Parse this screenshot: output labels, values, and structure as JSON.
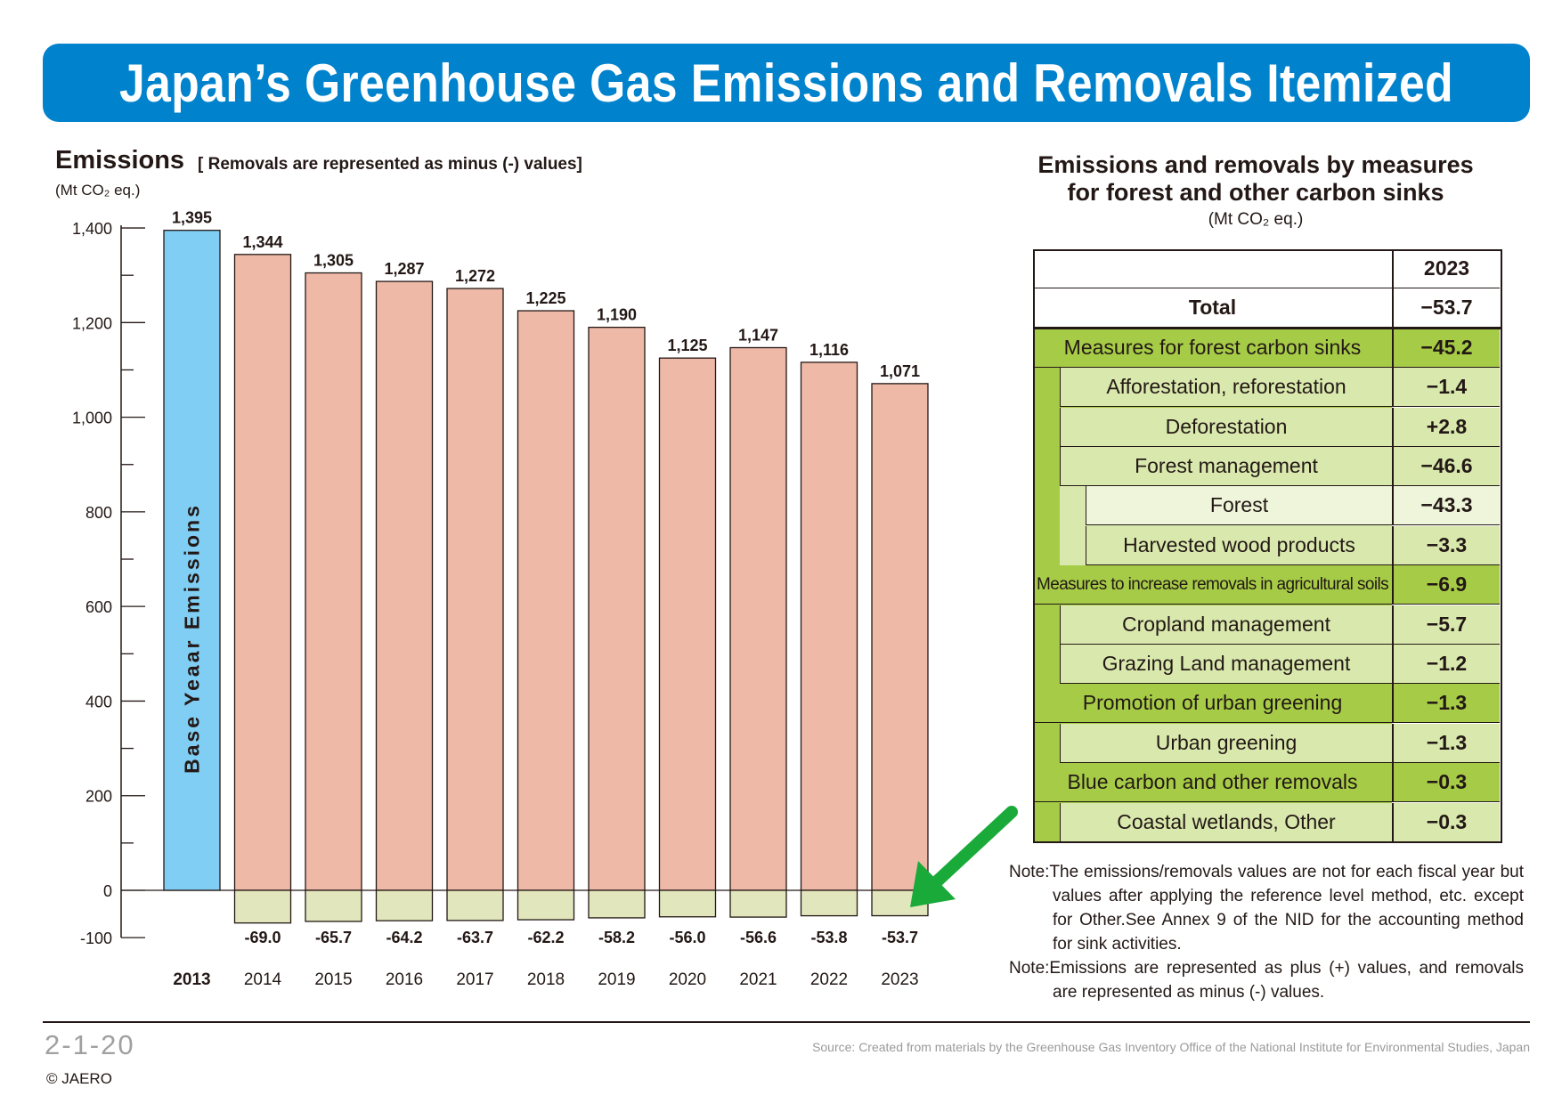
{
  "title": "Japan’s Greenhouse Gas Emissions and Removals Itemized",
  "emissions_label": "Emissions",
  "emissions_note": "[ Removals are represented as minus (-) values]",
  "emissions_unit": "(Mt CO₂ eq.)",
  "chart_data": {
    "type": "bar",
    "title": "Emissions",
    "subtitle": "[ Removals are represented as minus (-) values]",
    "ylabel": "(Mt CO₂ eq.)",
    "xlabel": "",
    "ylim": [
      -100,
      1400
    ],
    "yticks": [
      1400,
      1200,
      1000,
      800,
      600,
      400,
      200,
      0,
      -100
    ],
    "ytick_labels": [
      "1,400",
      "1,200",
      "1,000",
      "800",
      "600",
      "400",
      "200",
      "0",
      "-100"
    ],
    "categories": [
      "2013",
      "2014",
      "2015",
      "2016",
      "2017",
      "2018",
      "2019",
      "2020",
      "2021",
      "2022",
      "2023"
    ],
    "base_year_label": "Base Yeaar Emissions",
    "series": [
      {
        "name": "Emissions",
        "values": [
          1395,
          1344,
          1305,
          1287,
          1272,
          1225,
          1190,
          1125,
          1147,
          1116,
          1071
        ],
        "labels": [
          "1,395",
          "1,344",
          "1,305",
          "1,287",
          "1,272",
          "1,225",
          "1,190",
          "1,125",
          "1,147",
          "1,116",
          "1,071"
        ]
      },
      {
        "name": "Removals",
        "values": [
          null,
          -69.0,
          -65.7,
          -64.2,
          -63.7,
          -62.2,
          -58.2,
          -56.0,
          -56.6,
          -53.8,
          -53.7
        ],
        "labels": [
          "",
          "-69.0",
          "-65.7",
          "-64.2",
          "-63.7",
          "-62.2",
          "-58.2",
          "-56.0",
          "-56.6",
          "-53.8",
          "-53.7"
        ]
      }
    ],
    "colors": {
      "base": "#80cef4",
      "emissions": "#efb9a8",
      "removals": "#e1e6bc",
      "arrow": "#1aaa3a"
    }
  },
  "table": {
    "title_line1": "Emissions and removals by measures",
    "title_line2": "for forest and other carbon sinks",
    "unit": "(Mt CO₂ eq.)",
    "year": "2023",
    "rows": [
      {
        "label": "Total",
        "value": "−53.7"
      },
      {
        "label": "Measures for forest carbon sinks",
        "value": "−45.2"
      },
      {
        "label": "Afforestation, reforestation",
        "value": "−1.4"
      },
      {
        "label": "Deforestation",
        "value": "+2.8"
      },
      {
        "label": "Forest management",
        "value": "−46.6"
      },
      {
        "label": "Forest",
        "value": "−43.3"
      },
      {
        "label": "Harvested wood products",
        "value": "−3.3"
      },
      {
        "label": "Measures to increase removals in agricultural soils",
        "value": "−6.9"
      },
      {
        "label": "Cropland management",
        "value": "−5.7"
      },
      {
        "label": "Grazing Land management",
        "value": "−1.2"
      },
      {
        "label": "Promotion of urban greening",
        "value": "−1.3"
      },
      {
        "label": "Urban greening",
        "value": "−1.3"
      },
      {
        "label": "Blue carbon and other removals",
        "value": "−0.3"
      },
      {
        "label": "Coastal wetlands, Other",
        "value": "−0.3"
      }
    ],
    "colors": {
      "green": "#a6cc47",
      "light_green": "#d9e9ae",
      "pale_green": "#eef5da"
    }
  },
  "notes": [
    "Note:The emissions/removals values are not for each fiscal year but values after applying the reference level method, etc. except for Other.See Annex 9 of the NID for the accounting method for sink activities.",
    "Note:Emissions are represented as plus (+) values, and removals are represented as minus (-) values."
  ],
  "figure_number": "2-1-20",
  "copyright": "© JAERO",
  "source": "Source: Created from materials by the Greenhouse Gas Inventory Office of the National Institute for Environmental Studies, Japan"
}
